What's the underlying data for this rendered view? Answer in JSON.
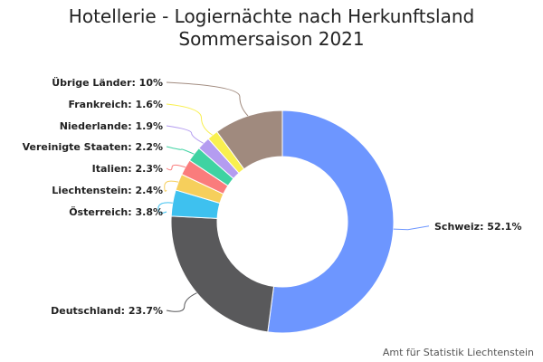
{
  "chart_data": {
    "type": "pie",
    "variant": "donut",
    "title": "Hotellerie - Logiernächte nach Herkunftsland",
    "subtitle": "Sommersaison 2021",
    "slices": [
      {
        "label": "Schweiz",
        "value": 52.1,
        "display": "Schweiz: 52.1%",
        "color": "#6d96ff"
      },
      {
        "label": "Deutschland",
        "value": 23.7,
        "display": "Deutschland: 23.7%",
        "color": "#59595b"
      },
      {
        "label": "Österreich",
        "value": 3.8,
        "display": "Österreich: 3.8%",
        "color": "#3ec1ef"
      },
      {
        "label": "Liechtenstein",
        "value": 2.4,
        "display": "Liechtenstein: 2.4%",
        "color": "#f6cf5c"
      },
      {
        "label": "Italien",
        "value": 2.3,
        "display": "Italien: 2.3%",
        "color": "#fa7c7c"
      },
      {
        "label": "Vereinigte Staaten",
        "value": 2.2,
        "display": "Vereinigte Staaten: 2.2%",
        "color": "#3fd3a2"
      },
      {
        "label": "Niederlande",
        "value": 1.9,
        "display": "Niederlande: 1.9%",
        "color": "#b49cf0"
      },
      {
        "label": "Frankreich",
        "value": 1.6,
        "display": "Frankreich: 1.6%",
        "color": "#f9f04f"
      },
      {
        "label": "Übrige Länder",
        "value": 10.0,
        "display": "Übrige Länder: 10%",
        "color": "#a08a7e"
      }
    ]
  },
  "credit": "Amt für Statistik Liechtenstein"
}
